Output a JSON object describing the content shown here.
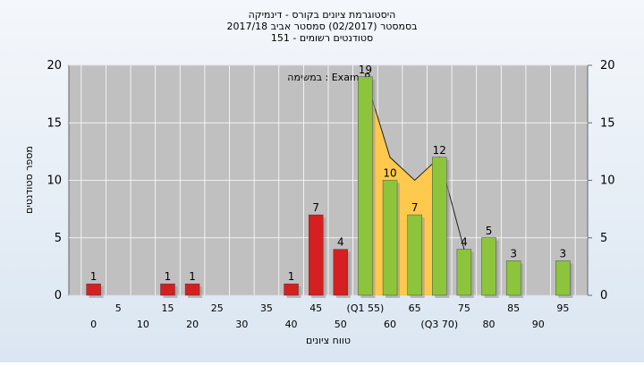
{
  "chart_data": {
    "type": "bar",
    "title": "היסטוגרמת ציונים בקורס - דינמיקה",
    "subtitle": "בסמסטר  (02/2017)  סמסטר אביב 2017/18",
    "subtitle2": "סטודנטים רשומים - 151",
    "annotation": "במשימה : Exam_B",
    "y_label": "מספר סטודנטים",
    "x_label": "טווח ציונים",
    "categories": [
      "0",
      "5",
      "10",
      "15",
      "20",
      "25",
      "30",
      "35",
      "40",
      "45",
      "50",
      "(Q1 55)",
      "60",
      "65",
      "(Q3 70)",
      "75",
      "80",
      "85",
      "90",
      "95"
    ],
    "values": [
      1,
      0,
      0,
      1,
      1,
      0,
      0,
      0,
      1,
      7,
      4,
      19,
      10,
      7,
      12,
      4,
      5,
      3,
      0,
      3
    ],
    "colors": [
      "#d42020",
      "#d42020",
      "#d42020",
      "#d42020",
      "#d42020",
      "#d42020",
      "#d42020",
      "#d42020",
      "#d42020",
      "#d42020",
      "#d42020",
      "#8cc43c",
      "#8cc43c",
      "#8cc43c",
      "#8cc43c",
      "#8cc43c",
      "#8cc43c",
      "#8cc43c",
      "#8cc43c",
      "#8cc43c"
    ],
    "overlay": {
      "x_index": [
        11,
        12,
        13,
        14,
        15
      ],
      "values": [
        19,
        12,
        10,
        12,
        4
      ],
      "color": "#ffc94d"
    },
    "ylim": [
      0,
      20
    ],
    "yticks": [
      0,
      5,
      10,
      15,
      20
    ],
    "y2lim": [
      0,
      20
    ],
    "y2ticks": [
      0,
      5,
      10,
      15,
      20
    ],
    "grid": true
  }
}
